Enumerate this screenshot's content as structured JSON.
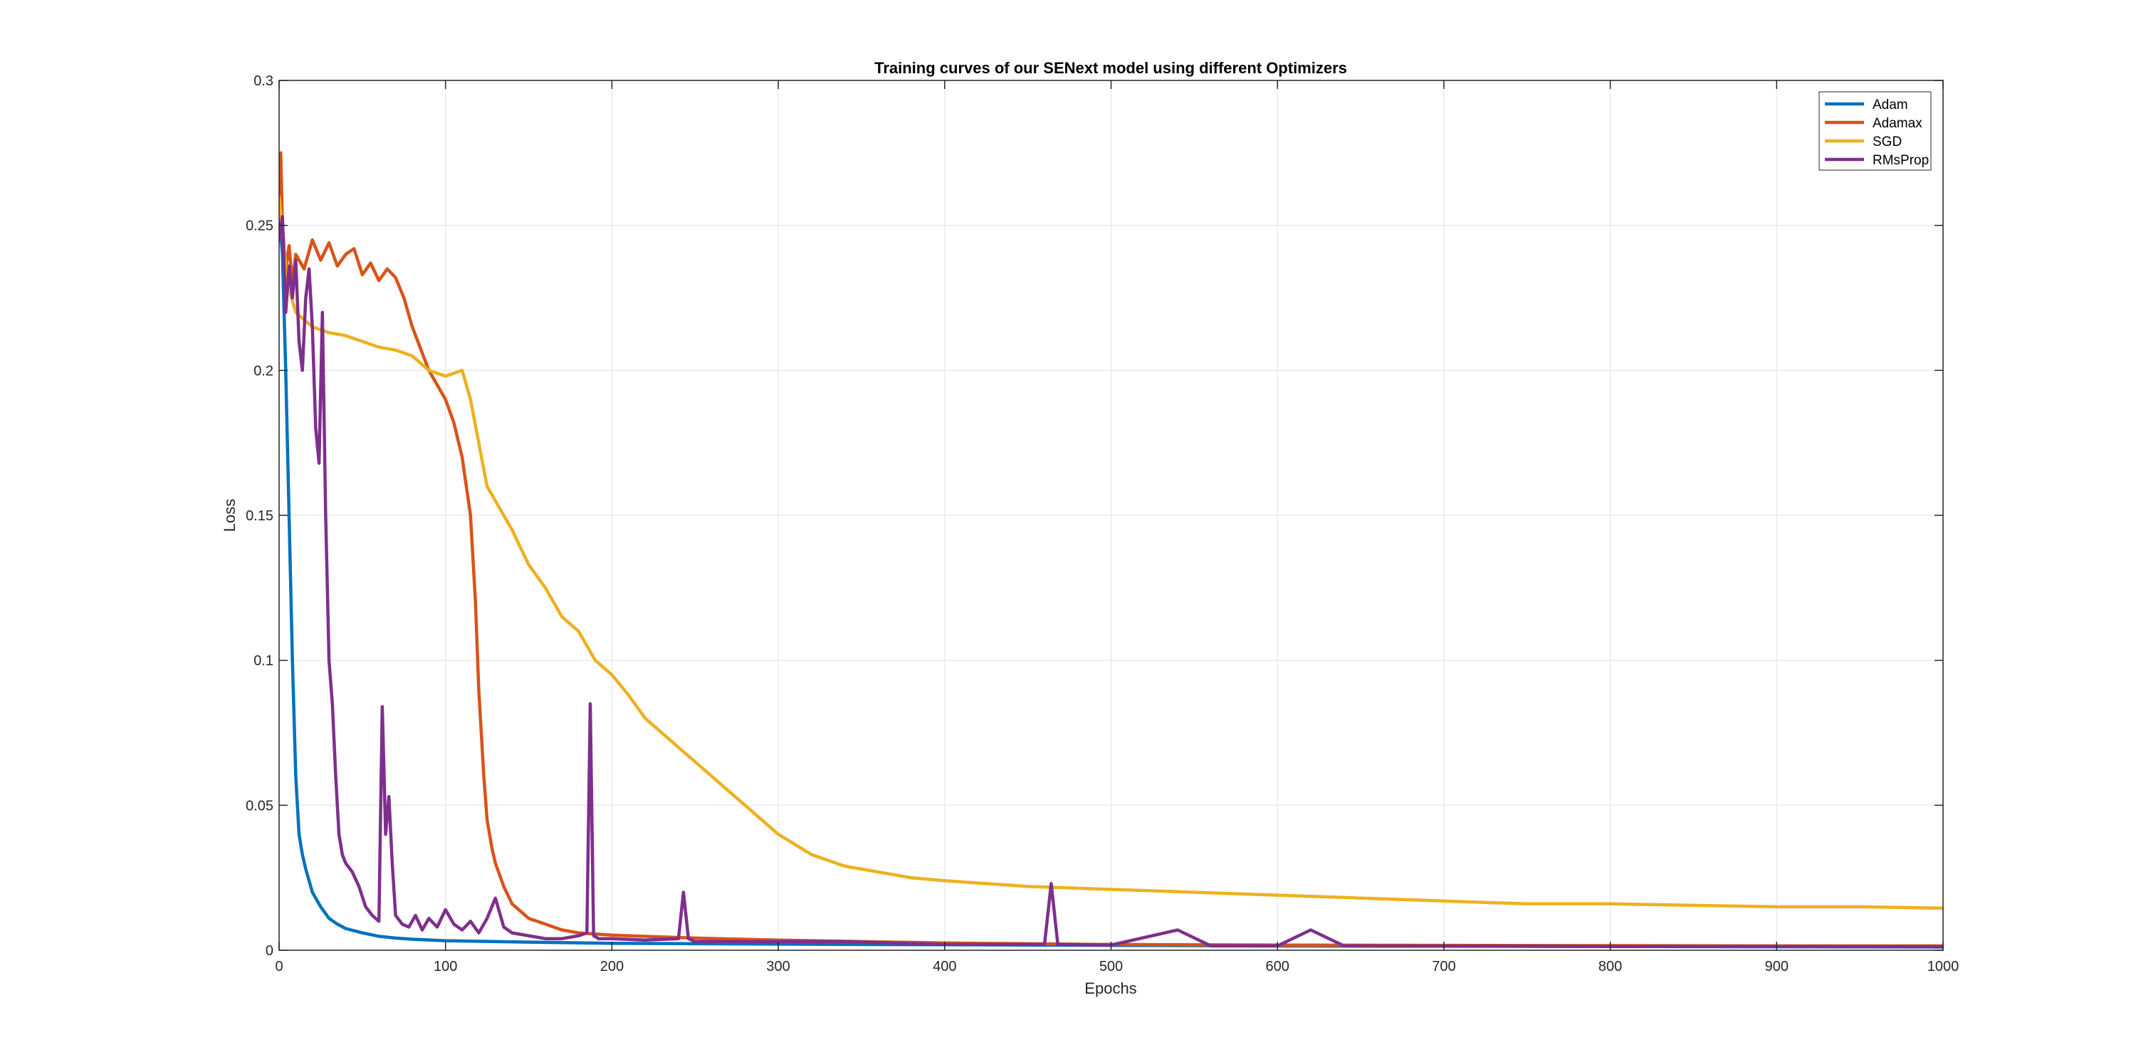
{
  "chart_data": {
    "type": "line",
    "title": "Training curves of our SENext model using different Optimizers",
    "xlabel": "Epochs",
    "ylabel": "Loss",
    "xlim": [
      0,
      1000
    ],
    "ylim": [
      0,
      0.3
    ],
    "xticks": [
      "0",
      "100",
      "200",
      "300",
      "400",
      "500",
      "600",
      "700",
      "800",
      "900",
      "1000"
    ],
    "yticks": [
      "0",
      "0.05",
      "0.1",
      "0.15",
      "0.2",
      "0.25",
      "0.3"
    ],
    "grid": true,
    "legend_position": "top-right",
    "series": [
      {
        "name": "Adam",
        "color": "#0072BD",
        "x": [
          0,
          2,
          4,
          6,
          8,
          10,
          12,
          14,
          16,
          18,
          20,
          25,
          30,
          35,
          40,
          50,
          60,
          70,
          80,
          100,
          150,
          200,
          300,
          400,
          500,
          600,
          700,
          800,
          900,
          1000
        ],
        "y": [
          0.255,
          0.24,
          0.2,
          0.15,
          0.1,
          0.06,
          0.04,
          0.033,
          0.028,
          0.024,
          0.02,
          0.015,
          0.011,
          0.009,
          0.0075,
          0.006,
          0.0048,
          0.0042,
          0.0038,
          0.0033,
          0.0028,
          0.0024,
          0.0021,
          0.0019,
          0.0017,
          0.0015,
          0.0014,
          0.0013,
          0.0012,
          0.0011
        ]
      },
      {
        "name": "Adamax",
        "color": "#D95319",
        "x": [
          0,
          1,
          2,
          4,
          6,
          8,
          10,
          15,
          20,
          25,
          30,
          35,
          40,
          45,
          50,
          55,
          60,
          65,
          70,
          75,
          80,
          90,
          100,
          105,
          110,
          115,
          118,
          120,
          123,
          125,
          128,
          130,
          135,
          140,
          150,
          160,
          170,
          180,
          200,
          250,
          300,
          400,
          500,
          600,
          700,
          800,
          900,
          1000
        ],
        "y": [
          0.26,
          0.275,
          0.25,
          0.235,
          0.243,
          0.23,
          0.24,
          0.235,
          0.245,
          0.238,
          0.244,
          0.236,
          0.24,
          0.242,
          0.233,
          0.237,
          0.231,
          0.235,
          0.232,
          0.225,
          0.215,
          0.2,
          0.19,
          0.182,
          0.17,
          0.15,
          0.12,
          0.09,
          0.06,
          0.045,
          0.035,
          0.03,
          0.022,
          0.016,
          0.011,
          0.009,
          0.007,
          0.006,
          0.0052,
          0.0042,
          0.0035,
          0.0025,
          0.002,
          0.0018,
          0.0017,
          0.0016,
          0.0015,
          0.0015
        ]
      },
      {
        "name": "SGD",
        "color": "#EDB120",
        "x": [
          0,
          5,
          10,
          20,
          30,
          40,
          50,
          60,
          70,
          80,
          90,
          100,
          110,
          115,
          120,
          125,
          130,
          140,
          150,
          160,
          170,
          180,
          190,
          200,
          210,
          220,
          230,
          240,
          250,
          260,
          270,
          280,
          290,
          300,
          320,
          340,
          360,
          380,
          400,
          450,
          500,
          550,
          600,
          650,
          700,
          750,
          800,
          850,
          900,
          950,
          1000
        ],
        "y": [
          0.26,
          0.23,
          0.22,
          0.215,
          0.213,
          0.212,
          0.21,
          0.208,
          0.207,
          0.205,
          0.2,
          0.198,
          0.2,
          0.19,
          0.175,
          0.16,
          0.155,
          0.145,
          0.133,
          0.125,
          0.115,
          0.11,
          0.1,
          0.095,
          0.088,
          0.08,
          0.075,
          0.07,
          0.065,
          0.06,
          0.055,
          0.05,
          0.045,
          0.04,
          0.033,
          0.029,
          0.027,
          0.025,
          0.024,
          0.022,
          0.021,
          0.02,
          0.019,
          0.018,
          0.017,
          0.016,
          0.016,
          0.0155,
          0.015,
          0.015,
          0.0145
        ]
      },
      {
        "name": "RMsProp",
        "color": "#7E2F8E",
        "x": [
          0,
          2,
          4,
          6,
          8,
          10,
          12,
          14,
          16,
          18,
          20,
          22,
          24,
          26,
          28,
          30,
          32,
          34,
          36,
          38,
          40,
          44,
          48,
          52,
          56,
          60,
          62,
          64,
          66,
          68,
          70,
          74,
          78,
          82,
          86,
          90,
          95,
          100,
          105,
          110,
          115,
          120,
          125,
          130,
          135,
          140,
          150,
          160,
          170,
          180,
          185,
          187,
          189,
          192,
          200,
          220,
          240,
          243,
          246,
          250,
          280,
          300,
          340,
          400,
          460,
          464,
          468,
          500,
          540,
          560,
          600,
          620,
          640,
          700,
          750,
          800,
          850,
          900,
          950,
          1000
        ],
        "y": [
          0.245,
          0.253,
          0.22,
          0.236,
          0.225,
          0.238,
          0.21,
          0.2,
          0.225,
          0.235,
          0.215,
          0.18,
          0.168,
          0.22,
          0.15,
          0.1,
          0.085,
          0.06,
          0.04,
          0.033,
          0.03,
          0.027,
          0.022,
          0.015,
          0.012,
          0.01,
          0.084,
          0.04,
          0.053,
          0.03,
          0.012,
          0.009,
          0.008,
          0.012,
          0.007,
          0.011,
          0.008,
          0.014,
          0.009,
          0.007,
          0.01,
          0.006,
          0.011,
          0.018,
          0.008,
          0.006,
          0.005,
          0.004,
          0.004,
          0.005,
          0.006,
          0.085,
          0.005,
          0.004,
          0.004,
          0.0035,
          0.004,
          0.02,
          0.004,
          0.003,
          0.003,
          0.003,
          0.003,
          0.002,
          0.002,
          0.023,
          0.002,
          0.0018,
          0.007,
          0.0015,
          0.0015,
          0.007,
          0.0015,
          0.0014,
          0.0014,
          0.0013,
          0.0013,
          0.0013,
          0.0012,
          0.0012
        ]
      }
    ]
  }
}
